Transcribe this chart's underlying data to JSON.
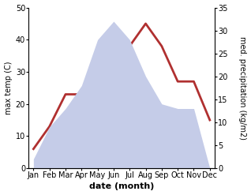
{
  "months": [
    "Jan",
    "Feb",
    "Mar",
    "Apr",
    "May",
    "Jun",
    "Jul",
    "Aug",
    "Sep",
    "Oct",
    "Nov",
    "Dec"
  ],
  "temperature": [
    6,
    13,
    23,
    23,
    32,
    37,
    38,
    45,
    38,
    27,
    27,
    15
  ],
  "precipitation": [
    2,
    9,
    13,
    18,
    28,
    32,
    28,
    20,
    14,
    13,
    13,
    0
  ],
  "temp_color": "#b03030",
  "precip_fill_color": "#c5cce8",
  "temp_ylim": [
    0,
    50
  ],
  "precip_ylim": [
    0,
    35
  ],
  "temp_yticks": [
    0,
    10,
    20,
    30,
    40,
    50
  ],
  "precip_yticks": [
    0,
    5,
    10,
    15,
    20,
    25,
    30,
    35
  ],
  "xlabel": "date (month)",
  "ylabel_left": "max temp (C)",
  "ylabel_right": "med. precipitation (kg/m2)",
  "bg_color": "#ffffff",
  "line_width": 2.0,
  "tick_fontsize": 7,
  "label_fontsize": 7,
  "xlabel_fontsize": 8
}
